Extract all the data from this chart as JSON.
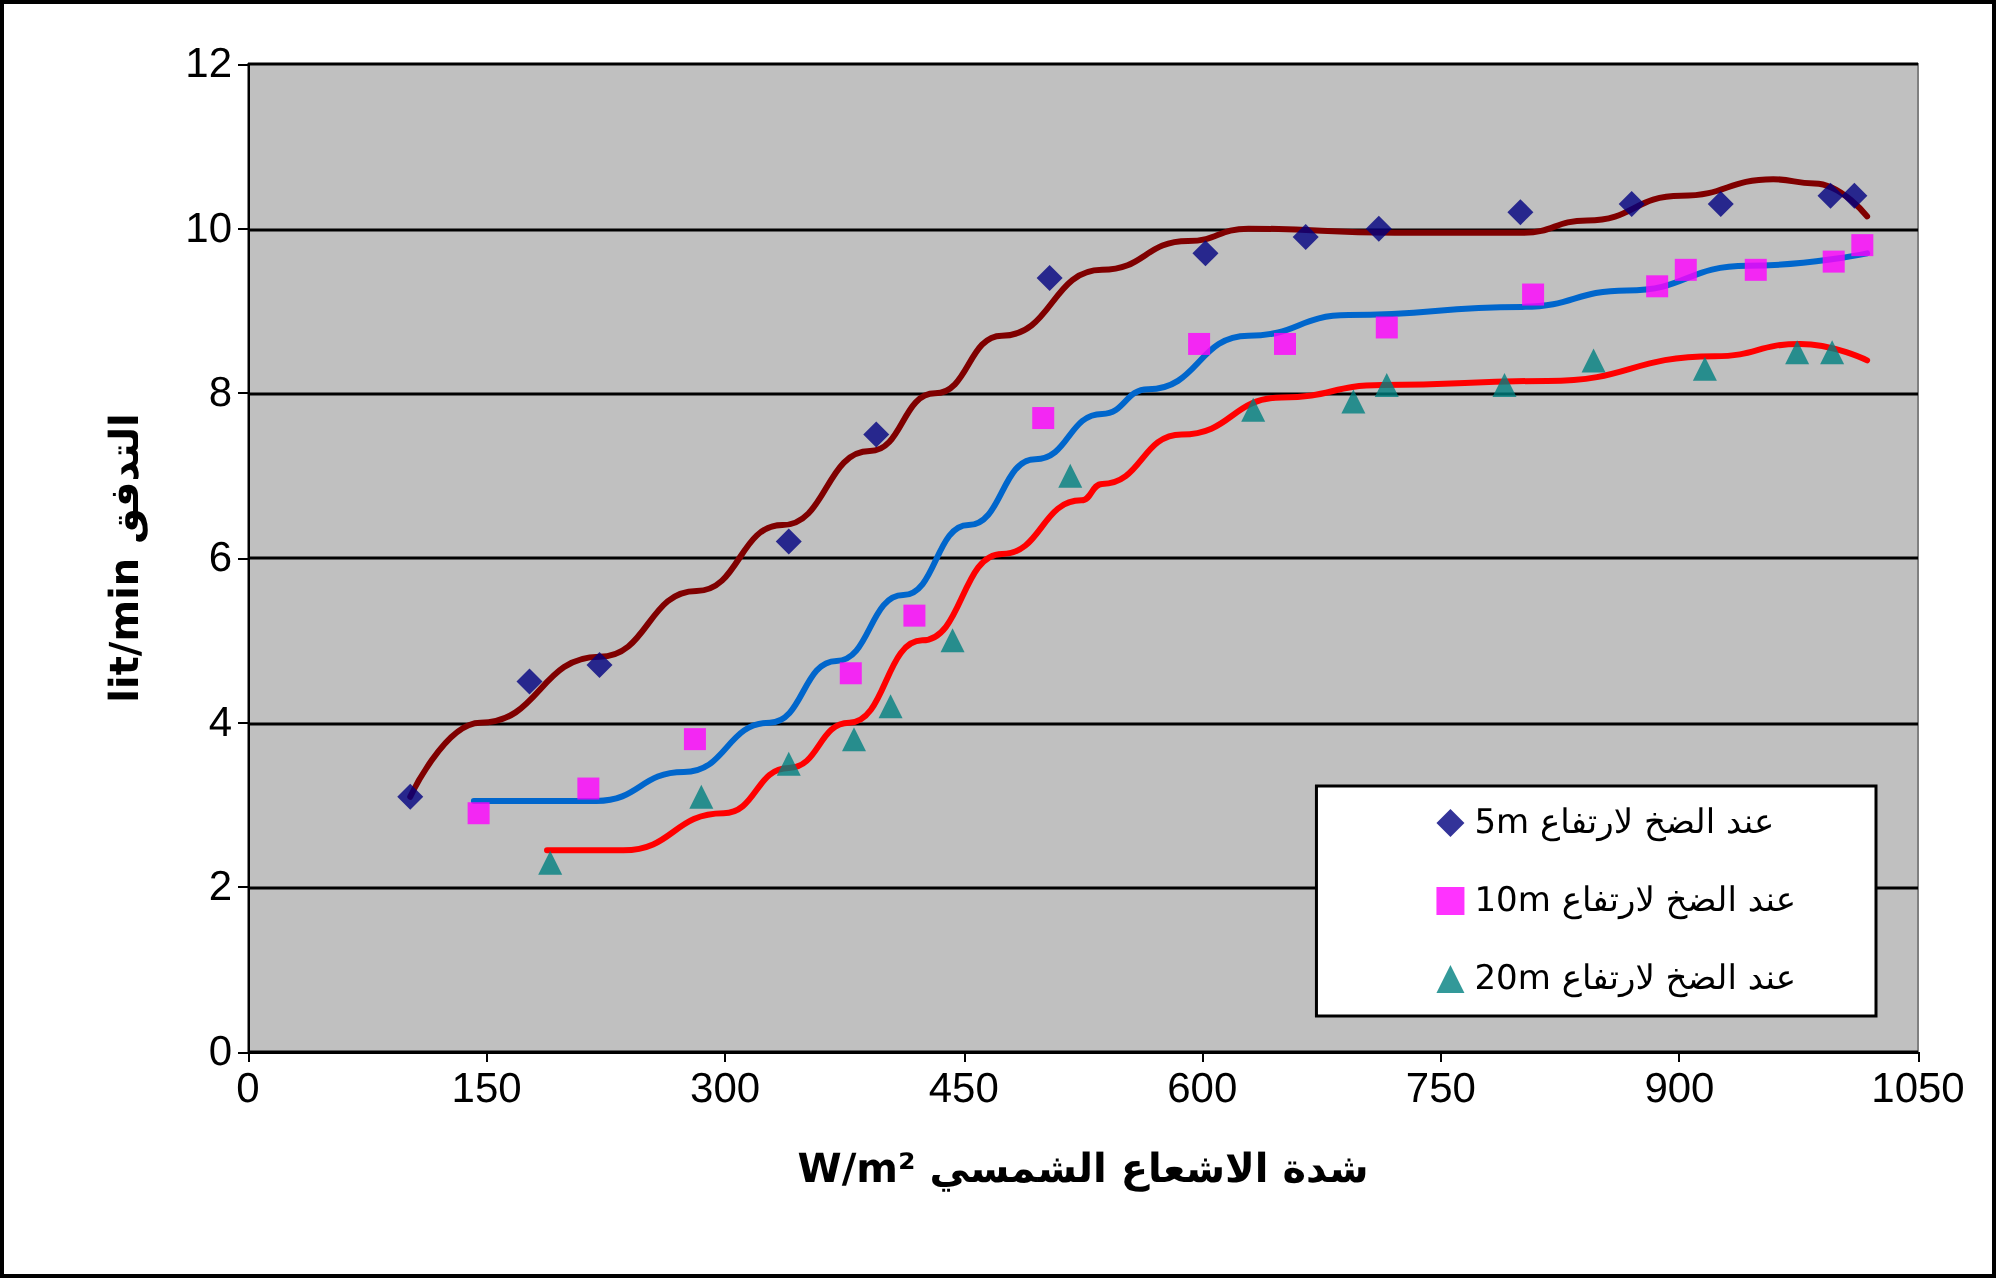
{
  "chart_data": {
    "type": "scatter",
    "xlabel": "W/m² شدة الاشعاع الشمسي",
    "ylabel": "lit/min التدفق",
    "xlim": [
      0,
      1050
    ],
    "xticks": [
      0,
      150,
      300,
      450,
      600,
      750,
      900,
      1050
    ],
    "ylim": [
      0,
      12
    ],
    "yticks": [
      0,
      2,
      4,
      6,
      8,
      10,
      12
    ],
    "grid": "y",
    "legend": "bottom right",
    "series": [
      {
        "name": "5m عند الضخ لارتفاع",
        "color": "#000080",
        "marker": "diamond",
        "x": [
          102,
          177,
          221,
          340,
          395,
          504,
          602,
          665,
          711,
          800,
          870,
          926,
          995,
          1010
        ],
        "values": [
          3.1,
          4.5,
          4.7,
          6.2,
          7.5,
          9.4,
          9.7,
          9.9,
          10.0,
          10.2,
          10.3,
          10.3,
          10.4,
          10.4
        ]
      },
      {
        "name": "10m عند الضخ لارتفاع",
        "color": "#ff00ff",
        "marker": "square",
        "x": [
          145,
          214,
          281,
          379,
          419,
          500,
          598,
          652,
          716,
          808,
          886,
          904,
          948,
          997,
          1015
        ],
        "values": [
          2.9,
          3.2,
          3.8,
          4.6,
          5.3,
          7.7,
          8.6,
          8.6,
          8.8,
          9.2,
          9.3,
          9.5,
          9.5,
          9.6,
          9.8
        ]
      },
      {
        "name": "20m عند الضخ لارتفاع",
        "color": "#008080",
        "marker": "triangle",
        "x": [
          190,
          285,
          340,
          381,
          404,
          443,
          517,
          632,
          695,
          716,
          790,
          846,
          916,
          974,
          996
        ],
        "values": [
          2.3,
          3.1,
          3.5,
          3.8,
          4.2,
          5.0,
          7.0,
          7.8,
          7.9,
          8.1,
          8.1,
          8.4,
          8.3,
          8.5,
          8.5
        ]
      },
      {
        "type": "line",
        "color": "#800000",
        "marker": "none",
        "x": [
          102,
          146,
          221,
          282,
          336,
          391,
          432,
          474,
          537,
          591,
          629,
          721,
          801,
          842,
          901,
          959,
          985,
          1018
        ],
        "values": [
          3.1,
          4.0,
          4.8,
          5.6,
          6.4,
          7.3,
          8.0,
          8.7,
          9.5,
          9.85,
          10.0,
          9.95,
          9.95,
          10.1,
          10.4,
          10.6,
          10.55,
          10.15
        ]
      },
      {
        "type": "line",
        "color": "#0066cc",
        "marker": "none",
        "x": [
          142,
          219,
          274,
          328,
          370,
          412,
          453,
          495,
          537,
          566,
          629,
          692,
          801,
          867,
          943,
          1018
        ],
        "values": [
          3.05,
          3.05,
          3.4,
          4.0,
          4.75,
          5.55,
          6.4,
          7.2,
          7.75,
          8.05,
          8.7,
          8.95,
          9.05,
          9.25,
          9.55,
          9.7
        ]
      },
      {
        "type": "line",
        "color": "#ff0000",
        "marker": "none",
        "x": [
          188,
          236,
          299,
          340,
          378,
          424,
          474,
          524,
          537,
          587,
          650,
          713,
          817,
          922,
          976,
          1018
        ],
        "values": [
          2.45,
          2.45,
          2.9,
          3.45,
          4.0,
          5.0,
          6.05,
          6.7,
          6.9,
          7.5,
          7.95,
          8.1,
          8.15,
          8.45,
          8.6,
          8.4
        ]
      }
    ]
  }
}
